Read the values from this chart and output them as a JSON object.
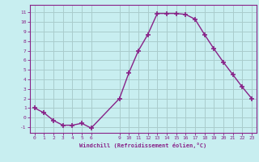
{
  "x": [
    0,
    1,
    2,
    3,
    4,
    5,
    6,
    9,
    10,
    11,
    12,
    13,
    14,
    15,
    16,
    17,
    18,
    19,
    20,
    21,
    22,
    23
  ],
  "y": [
    1,
    0.5,
    -0.3,
    -0.8,
    -0.8,
    -0.6,
    -1.1,
    2.0,
    4.7,
    7.0,
    8.7,
    10.9,
    10.9,
    10.9,
    10.8,
    10.3,
    8.7,
    7.2,
    5.8,
    4.5,
    3.2,
    2.0
  ],
  "line_color": "#882288",
  "marker": "+",
  "marker_size": 4,
  "marker_lw": 1.2,
  "bg_color": "#c8eef0",
  "grid_color": "#aacccc",
  "xlabel": "Windchill (Refroidissement éolien,°C)",
  "xtick_positions": [
    0,
    1,
    2,
    3,
    4,
    5,
    6,
    9,
    10,
    11,
    12,
    13,
    14,
    15,
    16,
    17,
    18,
    19,
    20,
    21,
    22,
    23
  ],
  "xtick_labels": [
    "0",
    "1",
    "2",
    "3",
    "4",
    "5",
    "6",
    "9",
    "10",
    "11",
    "12",
    "13",
    "14",
    "15",
    "16",
    "17",
    "18",
    "19",
    "20",
    "21",
    "22",
    "23"
  ],
  "ytick_positions": [
    -1,
    0,
    1,
    2,
    3,
    4,
    5,
    6,
    7,
    8,
    9,
    10,
    11
  ],
  "ytick_labels": [
    "-1",
    "0",
    "1",
    "2",
    "3",
    "4",
    "5",
    "6",
    "7",
    "8",
    "9",
    "10",
    "11"
  ],
  "xlim": [
    -0.5,
    23.5
  ],
  "ylim": [
    -1.6,
    11.8
  ],
  "tick_color": "#882288",
  "axis_color": "#882288",
  "line_width": 1.0
}
